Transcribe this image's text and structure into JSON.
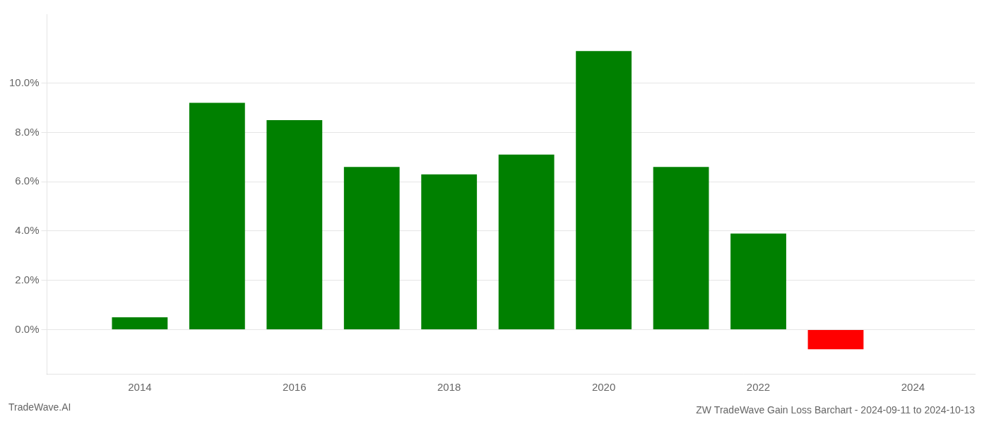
{
  "chart_data": {
    "type": "bar",
    "title": "ZW TradeWave Gain Loss Barchart - 2024-09-11 to 2024-10-13",
    "annotations": [
      "TradeWave.AI"
    ],
    "x": [
      2014,
      2015,
      2016,
      2017,
      2018,
      2019,
      2020,
      2021,
      2022,
      2023
    ],
    "values": [
      0.005,
      0.092,
      0.085,
      0.066,
      0.063,
      0.071,
      0.113,
      0.066,
      0.039,
      -0.008
    ],
    "colors": [
      "#008000",
      "#008000",
      "#008000",
      "#008000",
      "#008000",
      "#008000",
      "#008000",
      "#008000",
      "#008000",
      "#ff0000"
    ],
    "xlim": [
      2012.8,
      2024.8
    ],
    "xticks": [
      2014,
      2016,
      2018,
      2020,
      2022,
      2024
    ],
    "ylim": [
      -0.018,
      0.128
    ],
    "yticks": [
      {
        "value": 0.0,
        "label": "0.0%"
      },
      {
        "value": 0.02,
        "label": "2.0%"
      },
      {
        "value": 0.04,
        "label": "4.0%"
      },
      {
        "value": 0.06,
        "label": "6.0%"
      },
      {
        "value": 0.08,
        "label": "8.0%"
      },
      {
        "value": 0.1,
        "label": "10.0%"
      }
    ],
    "grid": true
  }
}
